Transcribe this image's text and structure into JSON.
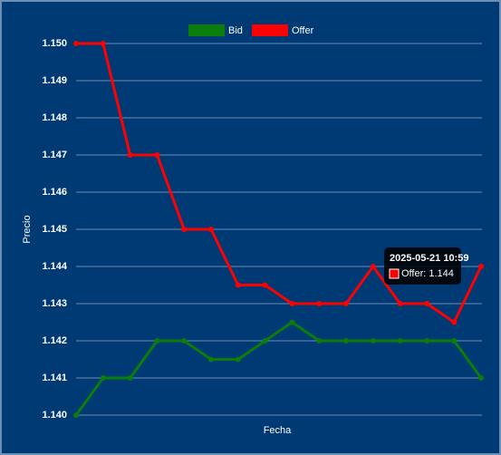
{
  "chart_data": {
    "type": "line",
    "x_label": "Fecha",
    "y_label": "Precio",
    "categories": [
      null,
      null,
      null,
      null,
      null,
      null,
      null,
      null,
      null,
      null,
      null,
      null,
      null,
      null,
      null,
      null
    ],
    "series": [
      {
        "name": "Bid",
        "color": "#0a7d0a",
        "values": [
          1.14,
          1.141,
          1.141,
          1.142,
          1.142,
          1.1415,
          1.1415,
          1.142,
          1.1425,
          1.142,
          1.142,
          1.142,
          1.142,
          1.142,
          1.142,
          1.141
        ]
      },
      {
        "name": "Offer",
        "color": "#ff0000",
        "values": [
          1.15,
          1.15,
          1.147,
          1.147,
          1.145,
          1.145,
          1.1435,
          1.1435,
          1.143,
          1.143,
          1.143,
          1.144,
          1.143,
          1.143,
          1.1425,
          1.144
        ]
      }
    ],
    "ylim": [
      1.14,
      1.15
    ],
    "yticks": [
      {
        "value": 1.14,
        "label": "1.140"
      },
      1.141,
      1.142,
      1.143,
      1.144,
      1.145,
      1.146,
      1.147,
      1.148,
      1.149,
      {
        "value": 1.15,
        "label": "1.150"
      }
    ],
    "grid": true,
    "legend": "top",
    "tooltip": {
      "title": "2025-05-21 10:59",
      "label": "Offer: 1.144"
    }
  }
}
